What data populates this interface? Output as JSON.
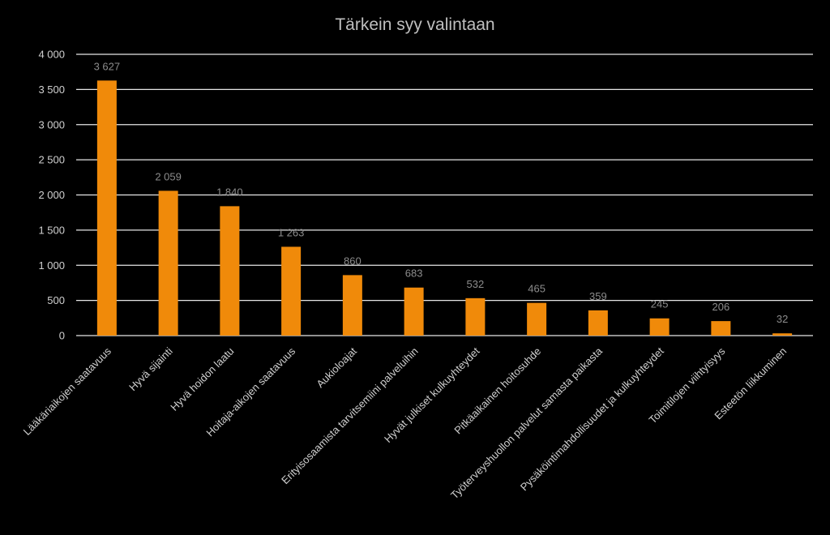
{
  "chart_data": {
    "type": "bar",
    "title": "Tärkein syy valintaan",
    "xlabel": "",
    "ylabel": "",
    "ylim": [
      0,
      4000
    ],
    "yticks": [
      0,
      500,
      1000,
      1500,
      2000,
      2500,
      3000,
      3500,
      4000
    ],
    "ytick_labels": [
      "0",
      "500",
      "1 000",
      "1 500",
      "2 000",
      "2 500",
      "3 000",
      "3 500",
      "4 000"
    ],
    "grid": true,
    "legend": "none",
    "bar_color": "#f08a0a",
    "categories": [
      "Lääkäriaikojen saatavuus",
      "Hyvä sijainti",
      "Hyvä hoidon laatu",
      "Hoitaja-aikojen saatavuus",
      "Aukioloajat",
      "Erityisosaamista tarvitsemiini palveluihin",
      "Hyvät julkiset kulkuyhteydet",
      "Pitkäaikainen hoitosuhde",
      "Työterveyshuollon palvelut samasta paikasta",
      "Pysäköintimahdollisuudet ja kulkuyhteydet",
      "Toimitilojen viihtyisyys",
      "Esteetön liikkuminen"
    ],
    "values": [
      3627,
      2059,
      1840,
      1263,
      860,
      683,
      532,
      465,
      359,
      245,
      206,
      32
    ],
    "data_labels": [
      "3 627",
      "2 059",
      "1 840",
      "1 263",
      "860",
      "683",
      "532",
      "465",
      "359",
      "245",
      "206",
      "32"
    ]
  }
}
